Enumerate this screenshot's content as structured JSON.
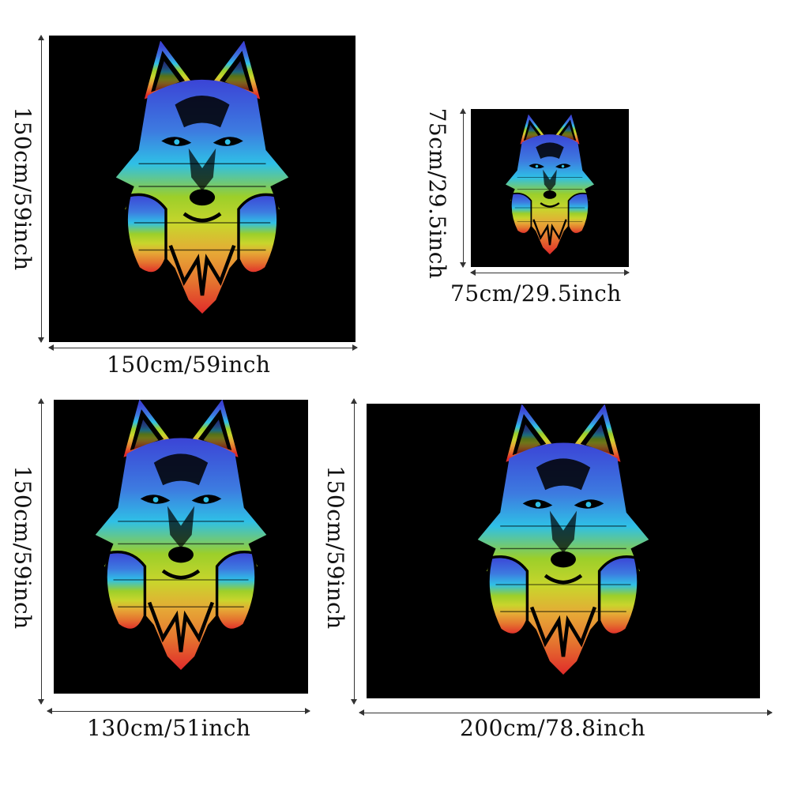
{
  "panels": [
    {
      "name": "panel-150x150",
      "width_label": "150cm/59inch",
      "height_label": "150cm/59inch"
    },
    {
      "name": "panel-75x75",
      "width_label": "75cm/29.5inch",
      "height_label": "75cm/29.5inch"
    },
    {
      "name": "panel-130x150",
      "width_label": "130cm/51inch",
      "height_label": "150cm/59inch"
    },
    {
      "name": "panel-200x150",
      "width_label": "200cm/78.8inch",
      "height_label": "150cm/59inch"
    }
  ],
  "artwork": {
    "icon": "wolf-with-headphones-icon",
    "background": "#000000",
    "gradient": [
      "#3a4fd8",
      "#2fb7e0",
      "#a9d32a",
      "#e8a030",
      "#e03030"
    ]
  }
}
